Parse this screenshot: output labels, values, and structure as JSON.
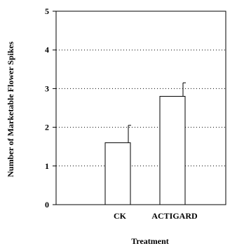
{
  "chart_data": {
    "type": "bar",
    "title": "",
    "xlabel": "Treatment",
    "ylabel": "Number of Marketable Flower Spikes",
    "categories": [
      "CK",
      "ACTIGARD"
    ],
    "values": [
      1.6,
      2.8
    ],
    "error_upper": [
      2.05,
      3.15
    ],
    "ylim": [
      0,
      5
    ],
    "yticks": [
      "0",
      "1",
      "2",
      "3",
      "4",
      "5"
    ],
    "grid": "horizontal-dotted",
    "legend": "none",
    "bar_fill": "#ffffff",
    "bar_stroke": "#000000"
  }
}
